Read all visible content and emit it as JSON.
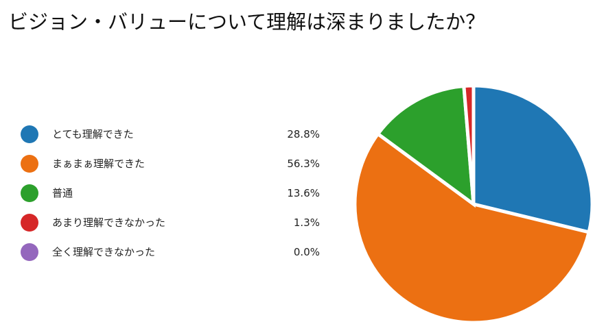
{
  "chart_data": {
    "type": "pie",
    "title": "ビジョン・バリューについて理解は深まりましたか？",
    "categories": [
      "とても理解できた",
      "まぁまぁ理解できた",
      "普通",
      "あまり理解できなかった",
      "全く理解できなかった"
    ],
    "values": [
      28.8,
      56.3,
      13.6,
      1.3,
      0.0
    ],
    "value_labels": [
      "28.8%",
      "56.3%",
      "13.6%",
      "1.3%",
      "0.0%"
    ],
    "unit": "%",
    "colors": [
      "#1f77b4",
      "#ec7012",
      "#2ca02c",
      "#d62728",
      "#9467bd"
    ],
    "legend_position": "left",
    "start_angle": "12 o'clock",
    "direction": "clockwise"
  }
}
